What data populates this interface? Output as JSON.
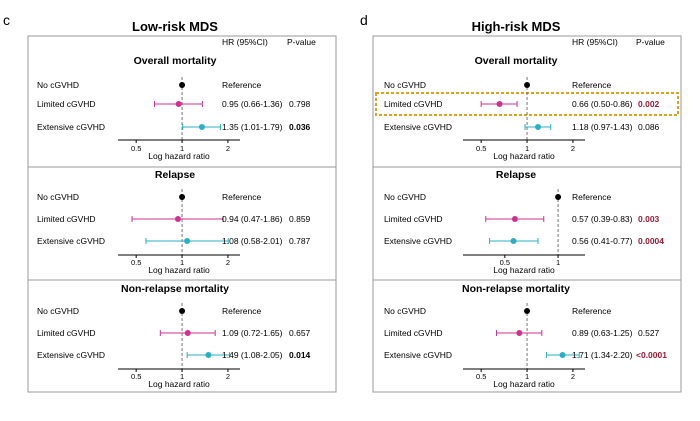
{
  "chart_data": [
    {
      "type": "forest",
      "panel_letter": "c",
      "title": "Low-risk MDS",
      "col_headers": {
        "hr": "HR (95%CI)",
        "p": "P-value"
      },
      "axis_label": "Log hazard ratio",
      "colors": {
        "reference": "#000000",
        "limited": "#d0308f",
        "extensive": "#2aaec4",
        "p_highlight": "#9b1a33"
      },
      "subpanels": [
        {
          "title": "Overall mortality",
          "ticks": [
            {
              "label": "0.5",
              "v": 0.5
            },
            {
              "label": "1",
              "v": 1
            },
            {
              "label": "2",
              "v": 2
            }
          ],
          "xlim": [
            0.38,
            2.4
          ],
          "rows": [
            {
              "label": "No cGVHD",
              "hr": 1.0,
              "lo": null,
              "hi": null,
              "text": "Reference",
              "p": "",
              "p_style": "normal",
              "group": "reference"
            },
            {
              "label": "Limited cGVHD",
              "hr": 0.95,
              "lo": 0.66,
              "hi": 1.36,
              "text": "0.95 (0.66-1.36)",
              "p": "0.798",
              "p_style": "normal",
              "group": "limited"
            },
            {
              "label": "Extensive cGVHD",
              "hr": 1.35,
              "lo": 1.01,
              "hi": 1.79,
              "text": "1.35 (1.01-1.79)",
              "p": "0.036",
              "p_style": "bold",
              "group": "extensive"
            }
          ]
        },
        {
          "title": "Relapse",
          "ticks": [
            {
              "label": "0.5",
              "v": 0.5
            },
            {
              "label": "1",
              "v": 1
            },
            {
              "label": "2",
              "v": 2
            }
          ],
          "xlim": [
            0.38,
            2.4
          ],
          "rows": [
            {
              "label": "No cGVHD",
              "hr": 1.0,
              "lo": null,
              "hi": null,
              "text": "Reference",
              "p": "",
              "p_style": "normal",
              "group": "reference"
            },
            {
              "label": "Limited cGVHD",
              "hr": 0.94,
              "lo": 0.47,
              "hi": 1.86,
              "text": "0.94 (0.47-1.86)",
              "p": "0.859",
              "p_style": "normal",
              "group": "limited"
            },
            {
              "label": "Extensive cGVHD",
              "hr": 1.08,
              "lo": 0.58,
              "hi": 2.01,
              "text": "1.08 (0.58-2.01)",
              "p": "0.787",
              "p_style": "normal",
              "group": "extensive"
            }
          ]
        },
        {
          "title": "Non-relapse mortality",
          "ticks": [
            {
              "label": "0.5",
              "v": 0.5
            },
            {
              "label": "1",
              "v": 1
            },
            {
              "label": "2",
              "v": 2
            }
          ],
          "xlim": [
            0.38,
            2.4
          ],
          "rows": [
            {
              "label": "No cGVHD",
              "hr": 1.0,
              "lo": null,
              "hi": null,
              "text": "Reference",
              "p": "",
              "p_style": "normal",
              "group": "reference"
            },
            {
              "label": "Limited cGVHD",
              "hr": 1.09,
              "lo": 0.72,
              "hi": 1.65,
              "text": "1.09 (0.72-1.65)",
              "p": "0.657",
              "p_style": "normal",
              "group": "limited"
            },
            {
              "label": "Extensive cGVHD",
              "hr": 1.49,
              "lo": 1.08,
              "hi": 2.05,
              "text": "1.49 (1.08-2.05)",
              "p": "0.014",
              "p_style": "bold",
              "group": "extensive"
            }
          ]
        }
      ]
    },
    {
      "type": "forest",
      "panel_letter": "d",
      "title": "High-risk MDS",
      "col_headers": {
        "hr": "HR (95%CI)",
        "p": "P-value"
      },
      "axis_label": "Log hazard ratio",
      "colors": {
        "reference": "#000000",
        "limited": "#d0308f",
        "extensive": "#2aaec4",
        "p_highlight": "#9b1a33",
        "highlight_box": "#e0a020"
      },
      "subpanels": [
        {
          "title": "Overall mortality",
          "ticks": [
            {
              "label": "0.5",
              "v": 0.5
            },
            {
              "label": "1",
              "v": 1
            },
            {
              "label": "2",
              "v": 2
            }
          ],
          "xlim": [
            0.38,
            2.4
          ],
          "highlight_row": 1,
          "rows": [
            {
              "label": "No cGVHD",
              "hr": 1.0,
              "lo": null,
              "hi": null,
              "text": "Reference",
              "p": "",
              "p_style": "normal",
              "group": "reference"
            },
            {
              "label": "Limited cGVHD",
              "hr": 0.66,
              "lo": 0.5,
              "hi": 0.86,
              "text": "0.66 (0.50-0.86)",
              "p": "0.002",
              "p_style": "highlight",
              "group": "limited"
            },
            {
              "label": "Extensive cGVHD",
              "hr": 1.18,
              "lo": 0.97,
              "hi": 1.43,
              "text": "1.18 (0.97-1.43)",
              "p": "0.086",
              "p_style": "normal",
              "group": "extensive"
            }
          ]
        },
        {
          "title": "Relapse",
          "ticks": [
            {
              "label": "0.5",
              "v": 0.5
            },
            {
              "label": "1",
              "v": 1
            }
          ],
          "xlim": [
            0.29,
            1.42
          ],
          "rows": [
            {
              "label": "No cGVHD",
              "hr": 1.0,
              "lo": null,
              "hi": null,
              "text": "Reference",
              "p": "",
              "p_style": "normal",
              "group": "reference"
            },
            {
              "label": "Limited cGVHD",
              "hr": 0.57,
              "lo": 0.39,
              "hi": 0.83,
              "text": "0.57 (0.39-0.83)",
              "p": "0.003",
              "p_style": "highlight",
              "group": "limited"
            },
            {
              "label": "Extensive cGVHD",
              "hr": 0.56,
              "lo": 0.41,
              "hi": 0.77,
              "text": "0.56 (0.41-0.77)",
              "p": "0.0004",
              "p_style": "highlight",
              "group": "extensive"
            }
          ]
        },
        {
          "title": "Non-relapse mortality",
          "ticks": [
            {
              "label": "0.5",
              "v": 0.5
            },
            {
              "label": "1",
              "v": 1
            },
            {
              "label": "2",
              "v": 2
            }
          ],
          "xlim": [
            0.38,
            2.4
          ],
          "rows": [
            {
              "label": "No cGVHD",
              "hr": 1.0,
              "lo": null,
              "hi": null,
              "text": "Reference",
              "p": "",
              "p_style": "normal",
              "group": "reference"
            },
            {
              "label": "Limited cGVHD",
              "hr": 0.89,
              "lo": 0.63,
              "hi": 1.25,
              "text": "0.89 (0.63-1.25)",
              "p": "0.527",
              "p_style": "normal",
              "group": "limited"
            },
            {
              "label": "Extensive cGVHD",
              "hr": 1.71,
              "lo": 1.34,
              "hi": 2.2,
              "text": "1.71 (1.34-2.20)",
              "p": "<0.0001",
              "p_style": "highlight",
              "group": "extensive"
            }
          ]
        }
      ]
    }
  ]
}
